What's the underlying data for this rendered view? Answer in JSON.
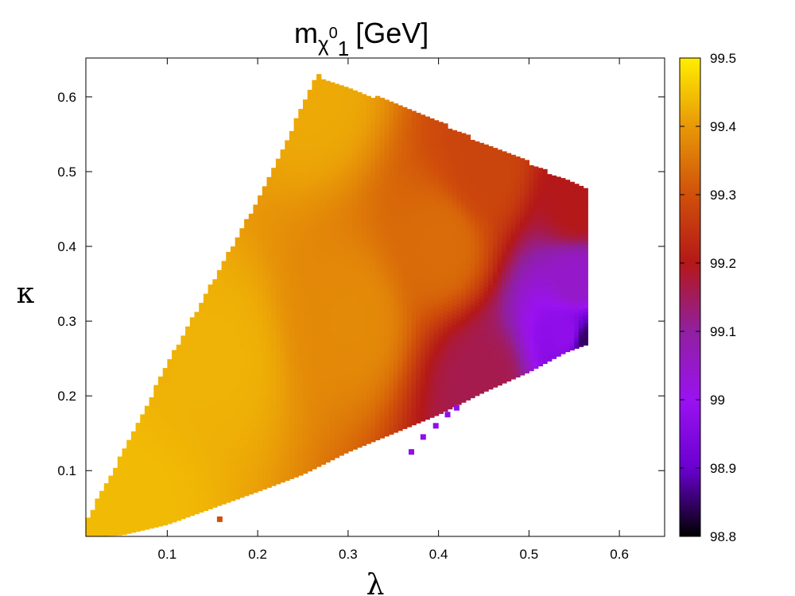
{
  "chart_data": {
    "type": "heatmap",
    "title": {
      "base": "m",
      "sub_symbol": "χ",
      "sub_sup": "0",
      "sub_sub": "1",
      "unit": "[GeV]"
    },
    "xlabel": "λ",
    "ylabel": "κ",
    "xlim": [
      0.01,
      0.65
    ],
    "ylim": [
      0.012,
      0.652
    ],
    "xticks": [
      {
        "value": 0.1,
        "label": "0.1"
      },
      {
        "value": 0.2,
        "label": "0.2"
      },
      {
        "value": 0.3,
        "label": "0.3"
      },
      {
        "value": 0.4,
        "label": "0.4"
      },
      {
        "value": 0.5,
        "label": "0.5"
      },
      {
        "value": 0.6,
        "label": "0.6"
      }
    ],
    "yticks": [
      {
        "value": 0.1,
        "label": "0.1"
      },
      {
        "value": 0.2,
        "label": "0.2"
      },
      {
        "value": 0.3,
        "label": "0.3"
      },
      {
        "value": 0.4,
        "label": "0.4"
      },
      {
        "value": 0.5,
        "label": "0.5"
      },
      {
        "value": 0.6,
        "label": "0.6"
      }
    ],
    "colorbar": {
      "range": [
        98.8,
        99.5
      ],
      "ticks": [
        {
          "value": 98.8,
          "label": "98.8"
        },
        {
          "value": 98.9,
          "label": "98.9"
        },
        {
          "value": 99.0,
          "label": "99"
        },
        {
          "value": 99.1,
          "label": "99.1"
        },
        {
          "value": 99.2,
          "label": "99.2"
        },
        {
          "value": 99.3,
          "label": "99.3"
        },
        {
          "value": 99.4,
          "label": "99.4"
        },
        {
          "value": 99.5,
          "label": "99.5"
        }
      ],
      "palette": [
        "#000000",
        "#6a00d0",
        "#9a12f0",
        "#9020a0",
        "#b41818",
        "#d0500a",
        "#e89808",
        "#ffee00"
      ]
    },
    "region": {
      "upper_boundary": [
        [
          0.01,
          0.03
        ],
        [
          0.05,
          0.12
        ],
        [
          0.1,
          0.24
        ],
        [
          0.15,
          0.35
        ],
        [
          0.2,
          0.46
        ],
        [
          0.24,
          0.56
        ],
        [
          0.265,
          0.627
        ],
        [
          0.3,
          0.608
        ],
        [
          0.35,
          0.59
        ],
        [
          0.4,
          0.565
        ],
        [
          0.45,
          0.535
        ],
        [
          0.5,
          0.51
        ],
        [
          0.535,
          0.488
        ],
        [
          0.562,
          0.478
        ]
      ],
      "lower_boundary": [
        [
          0.01,
          0.012
        ],
        [
          0.05,
          0.014
        ],
        [
          0.1,
          0.028
        ],
        [
          0.15,
          0.05
        ],
        [
          0.2,
          0.072
        ],
        [
          0.25,
          0.095
        ],
        [
          0.3,
          0.125
        ],
        [
          0.35,
          0.15
        ],
        [
          0.4,
          0.175
        ],
        [
          0.45,
          0.205
        ],
        [
          0.5,
          0.232
        ],
        [
          0.54,
          0.258
        ],
        [
          0.562,
          0.268
        ]
      ],
      "isolated_points": [
        [
          0.37,
          0.125
        ],
        [
          0.383,
          0.145
        ],
        [
          0.397,
          0.16
        ],
        [
          0.41,
          0.175
        ],
        [
          0.42,
          0.184
        ],
        [
          0.158,
          0.035
        ]
      ],
      "value_samples": [
        {
          "x": 0.05,
          "y": 0.05,
          "v": 99.44
        },
        {
          "x": 0.15,
          "y": 0.25,
          "v": 99.43
        },
        {
          "x": 0.26,
          "y": 0.6,
          "v": 99.42
        },
        {
          "x": 0.3,
          "y": 0.3,
          "v": 99.38
        },
        {
          "x": 0.4,
          "y": 0.4,
          "v": 99.34
        },
        {
          "x": 0.45,
          "y": 0.5,
          "v": 99.28
        },
        {
          "x": 0.45,
          "y": 0.22,
          "v": 99.16
        },
        {
          "x": 0.55,
          "y": 0.45,
          "v": 99.2
        },
        {
          "x": 0.55,
          "y": 0.35,
          "v": 99.05
        },
        {
          "x": 0.54,
          "y": 0.28,
          "v": 98.98
        },
        {
          "x": 0.56,
          "y": 0.27,
          "v": 98.85
        }
      ]
    }
  }
}
